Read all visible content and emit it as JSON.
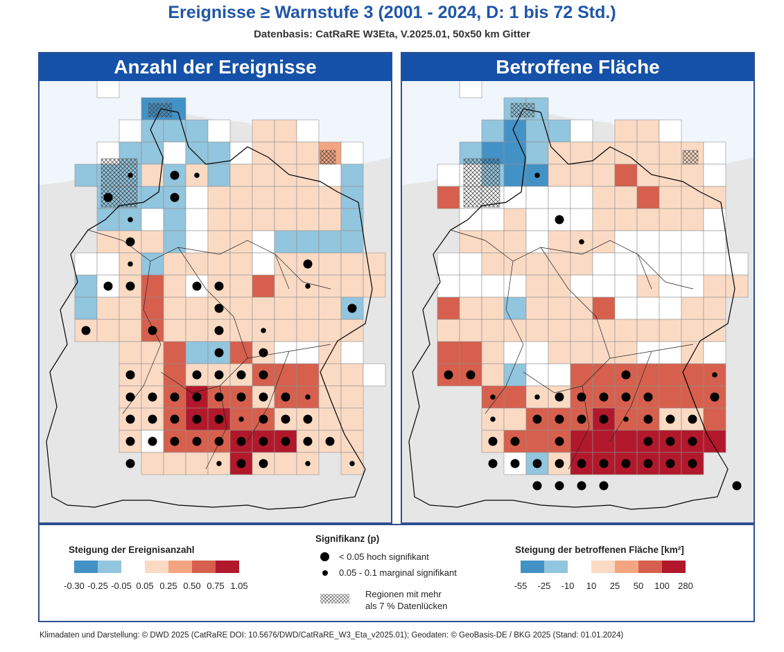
{
  "title": "Ereignisse ≥ Warnstufe 3 (2001 - 2024, D: 1 bis 72 Std.)",
  "subtitle": "Datenbasis: CatRaRE W3Eta, V.2025.01, 50x50 km Gitter",
  "left_panel": {
    "title": "Anzahl der Ereignisse"
  },
  "right_panel": {
    "title": "Betroffene Fläche"
  },
  "legend": {
    "left_title": "Steigung der Ereignisanzahl",
    "left_ticks": [
      "-0.30",
      "-0.25",
      "-0.05",
      "0.05",
      "0.25",
      "0.50",
      "0.75",
      "1.05"
    ],
    "right_title": "Steigung der betroffenen Fläche [km²]",
    "right_ticks": [
      "-55",
      "-25",
      "-10",
      "10",
      "25",
      "50",
      "100",
      "280"
    ],
    "colors": [
      "#4392c6",
      "#92c5de",
      "#ffffff",
      "#fbdac4",
      "#f3a582",
      "#d6604d",
      "#b2182b"
    ],
    "sig_title": "Signifikanz (p)",
    "sig_high": "< 0.05 hoch signifikant",
    "sig_marginal": "0.05 - 0.1 marginal signifikant",
    "gap_label_line1": "Regionen mit mehr",
    "gap_label_line2": "als 7 % Datenlücken"
  },
  "credit": "Klimadaten und Darstellung: © DWD 2025 (CatRaRE DOI: 10.5676/DWD/CatRaRE_W3_Eta_v2025.01); Geodaten: © GeoBasis-DE / BKG 2025 (Stand: 01.01.2024)",
  "grid": {
    "left_rows": [
      "___w____________",
      "_____GG_________",
      "____wBBBw_PPw___",
      "___wBBwBBwPPPHw_",
      "__BBBPBPBPPPPwB_",
      "___BBBBwPPPPPPB_",
      "___BBwBwPPPPPPB_",
      "___PPPBwPPwBBBB_",
      "__wwPBPPPPwPPPPP",
      "__BwPOPwPPOPPPPP",
      "__BPPOPPPPPPPPB_",
      "__PPPOPPPPPPPPP_",
      "____PPOBBOPwwPw_",
      "____PPOPPPOOOPPw",
      "____PPOROOPOOPP_",
      "____PPORROOPPPP_",
      "____PwOOORRRPPP_",
      "_____PPPPRPPP_P_"
    ],
    "right_rows": [
      "___w____________",
      "_____BB_________",
      "____BGBBw_PPw___",
      "___BGGBPPPPPPPw_",
      "__wwBGGPPPOPPPw_",
      "__OwwwwwwPPOPPP_",
      "___wwPwwwPPPPPw_",
      "___PPPwPPPwwwww_",
      "__wwPPPPPwwwwwww",
      "__wwwwPPwwwPwwPP",
      "__OPPBPPPOwwwPP_",
      "__PPPPPPPPPPPPP_",
      "__OOPwwPPPPwwPw_",
      "__OOPBwwOOOOOOO_",
      "____OOPPOOOOOOO_",
      "____PPOOOROOPPO_",
      "____POOORRRRRRR_",
      "_____wBPRRRRRR__"
    ],
    "left_dots": [
      "..............",
      "....l.Bl........",
      "...B..B..........",
      "....l...........",
      "....B...........",
      "....l.......B...",
      "...BB..BB...l...",
      "........B.....B.",
      "..B..B..B.l.....",
      "........B.B.....",
      "....B..BBBB.....",
      "....BBBBBBBBl...",
      "....BBBBBlBBB...",
      "....BBBBBBBBBB..",
      "....B...lBB.l.l."
    ],
    "right_dots": [
      "................",
      "......l........",
      "...............",
      ".......B........",
      "........l.......",
      "................",
      "................",
      "................",
      "................",
      "................",
      "..BB......B...l.",
      "....l.lBBBBB..B.",
      "....l.BBBBlBBB..",
      "....BB.B...BBB..",
      "....BBBBBBBBBB..",
      "......BBBB.....B"
    ]
  }
}
